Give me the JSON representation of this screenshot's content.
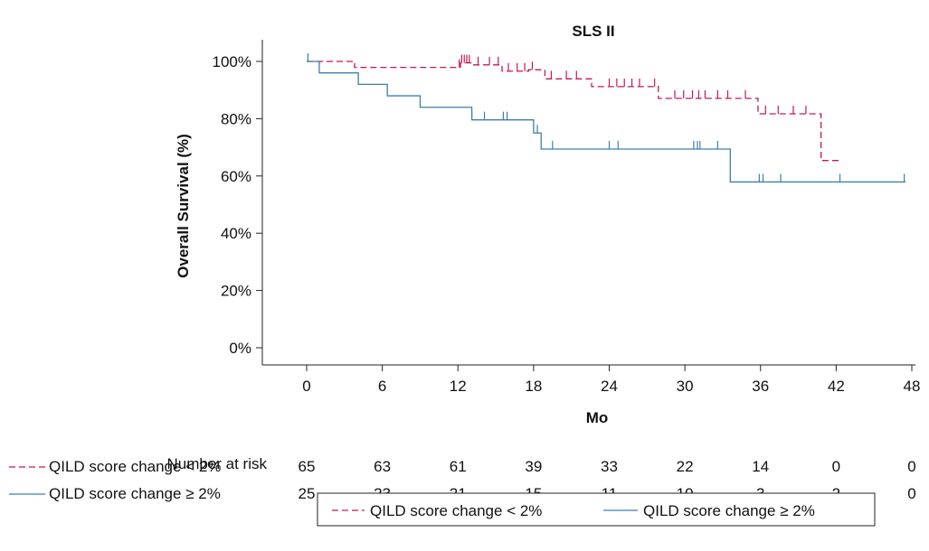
{
  "chart_data": {
    "type": "line",
    "subtype": "kaplan-meier step",
    "title": "SLS II",
    "xlabel": "Mo",
    "ylabel": "Overall Survival (%)",
    "xlim": [
      0,
      48
    ],
    "ylim": [
      0,
      100
    ],
    "x_ticks": [
      0,
      6,
      12,
      18,
      24,
      30,
      36,
      42,
      48
    ],
    "y_ticks": [
      0,
      20,
      40,
      60,
      80,
      100
    ],
    "y_tick_labels": [
      "0%",
      "20%",
      "40%",
      "60%",
      "80%",
      "100%"
    ],
    "grid": false,
    "legend_position": "bottom-center",
    "series": [
      {
        "name": "QILD score change < 2%",
        "color": "#c2185b",
        "dash": "dashed",
        "steps": [
          [
            0,
            100
          ],
          [
            3.8,
            97.9
          ],
          [
            12.2,
            99.5
          ],
          [
            13.2,
            98.8
          ],
          [
            15.5,
            96.6
          ],
          [
            17.6,
            97.1
          ],
          [
            18.9,
            93.9
          ],
          [
            22.6,
            91.2
          ],
          [
            27.9,
            87.1
          ],
          [
            35.8,
            81.7
          ],
          [
            40.8,
            65.4
          ],
          [
            42.2,
            65.4
          ]
        ],
        "censor_times": [
          12.1,
          12.3,
          12.5,
          12.7,
          12.9,
          13.6,
          14.5,
          15.2,
          16.0,
          16.7,
          17.3,
          17.9,
          19.4,
          20.6,
          21.4,
          24.0,
          24.6,
          25.2,
          25.8,
          26.4,
          27.6,
          29.2,
          29.9,
          30.6,
          31.1,
          31.6,
          32.6,
          33.4,
          34.8,
          36.4,
          37.4,
          38.6,
          39.6
        ],
        "risk_counts": [
          65,
          63,
          61,
          39,
          33,
          22,
          14,
          0,
          0
        ]
      },
      {
        "name": "QILD score change ≥ 2%",
        "color": "#3f7fa8",
        "dash": "solid",
        "steps": [
          [
            0,
            100
          ],
          [
            1.0,
            96.0
          ],
          [
            4.1,
            92.0
          ],
          [
            6.4,
            88.0
          ],
          [
            9.0,
            84.0
          ],
          [
            13.1,
            79.6
          ],
          [
            18.0,
            75.0
          ],
          [
            18.6,
            69.4
          ],
          [
            33.6,
            57.9
          ],
          [
            47.5,
            57.9
          ]
        ],
        "censor_times": [
          0.1,
          13.1,
          14.1,
          15.6,
          15.9,
          18.3,
          19.5,
          24.0,
          24.7,
          30.7,
          31.0,
          31.2,
          32.6,
          35.9,
          36.2,
          37.6,
          42.3,
          47.4
        ],
        "risk_counts": [
          25,
          23,
          21,
          15,
          11,
          10,
          3,
          2,
          0
        ]
      }
    ],
    "risk_table_title": "Number at risk"
  }
}
